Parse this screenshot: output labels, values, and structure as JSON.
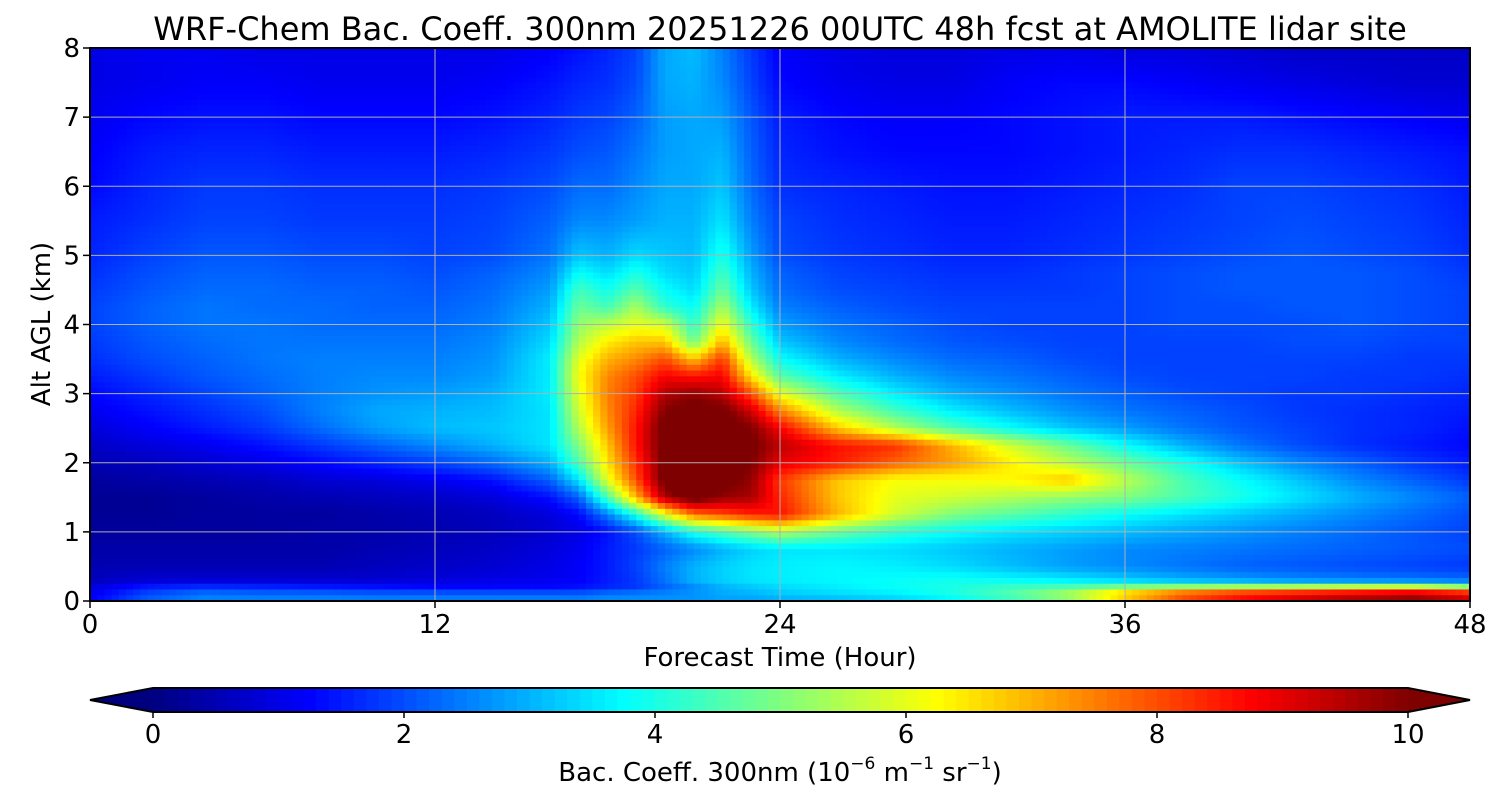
{
  "chart_data": {
    "type": "heatmap",
    "title": "WRF-Chem Bac. Coeff. 300nm  20251226 00UTC 48h fcst at AMOLITE lidar site",
    "xlabel": "Forecast Time (Hour)",
    "ylabel": "Alt AGL (km)",
    "xlim": [
      0,
      48
    ],
    "ylim": [
      0,
      8
    ],
    "x_ticks": [
      0,
      12,
      24,
      36,
      48
    ],
    "y_ticks": [
      0,
      1,
      2,
      3,
      4,
      5,
      6,
      7,
      8
    ],
    "grid": true,
    "colormap": "jet",
    "colorbar": {
      "label_prefix": "Bac. Coeff. 300nm  (10",
      "label_exp1": "−6",
      "label_mid": " m",
      "label_exp2": "−1",
      "label_mid2": " sr",
      "label_exp3": "−1",
      "label_suffix": ")",
      "range": [
        0,
        10
      ],
      "ticks": [
        0,
        2,
        4,
        6,
        8,
        10
      ],
      "extend": "both",
      "orientation": "horizontal",
      "under_color": "#00007f",
      "over_color": "#7f0000"
    },
    "x": [
      0,
      2,
      4,
      6,
      8,
      10,
      12,
      14,
      16,
      17,
      18,
      19,
      20,
      21,
      22,
      23,
      24,
      26,
      28,
      30,
      32,
      34,
      36,
      38,
      40,
      42,
      44,
      46,
      48
    ],
    "y": [
      0,
      0.1,
      0.2,
      0.3,
      0.5,
      0.75,
      1.0,
      1.25,
      1.5,
      1.75,
      2.0,
      2.25,
      2.5,
      2.75,
      3.0,
      3.25,
      3.5,
      3.75,
      4.0,
      4.25,
      4.5,
      4.75,
      5.0,
      5.5,
      6.0,
      6.5,
      7.0,
      7.5,
      8.0
    ],
    "values": [
      [
        1.2,
        2.2,
        2.6,
        2.6,
        2.6,
        2.6,
        2.6,
        2.6,
        2.6,
        2.6,
        2.7,
        2.7,
        2.7,
        2.7,
        2.8,
        2.8,
        2.9,
        3.0,
        3.2,
        3.6,
        4.2,
        5.0,
        6.5,
        7.8,
        8.5,
        9.0,
        9.4,
        9.7,
        9.0
      ],
      [
        1.1,
        2.0,
        2.4,
        2.3,
        2.3,
        2.2,
        2.2,
        2.2,
        2.2,
        2.2,
        2.4,
        2.5,
        2.6,
        2.7,
        2.9,
        3.0,
        3.2,
        3.4,
        3.6,
        4.0,
        4.6,
        5.5,
        7.0,
        8.2,
        8.8,
        9.2,
        9.5,
        9.8,
        9.2
      ],
      [
        0.9,
        1.5,
        1.7,
        1.6,
        1.5,
        1.4,
        1.3,
        1.3,
        1.3,
        1.4,
        1.6,
        1.8,
        2.2,
        2.6,
        3.0,
        3.2,
        3.4,
        3.6,
        3.8,
        4.0,
        4.3,
        4.5,
        5.0,
        5.3,
        5.5,
        5.6,
        5.8,
        5.9,
        5.3
      ],
      [
        0.6,
        0.8,
        0.8,
        0.8,
        0.8,
        0.8,
        0.9,
        1.0,
        1.1,
        1.2,
        1.5,
        1.8,
        2.4,
        3.0,
        3.3,
        3.5,
        3.6,
        3.7,
        3.8,
        3.9,
        3.8,
        3.6,
        3.3,
        3.0,
        2.8,
        2.6,
        2.5,
        2.4,
        2.3
      ],
      [
        0.5,
        0.5,
        0.5,
        0.5,
        0.5,
        0.6,
        0.7,
        0.8,
        1.0,
        1.2,
        1.5,
        1.9,
        2.5,
        3.0,
        3.3,
        3.5,
        3.6,
        3.7,
        3.6,
        3.4,
        3.1,
        2.8,
        2.6,
        2.4,
        2.2,
        2.1,
        2.0,
        1.9,
        1.8
      ],
      [
        0.4,
        0.4,
        0.4,
        0.4,
        0.4,
        0.5,
        0.6,
        0.7,
        0.9,
        1.1,
        1.5,
        1.8,
        2.2,
        2.6,
        3.0,
        3.3,
        3.5,
        3.5,
        3.4,
        3.2,
        3.0,
        2.8,
        2.6,
        2.5,
        2.4,
        2.3,
        2.2,
        2.1,
        2.0
      ],
      [
        0.3,
        0.3,
        0.3,
        0.3,
        0.4,
        0.4,
        0.5,
        0.6,
        0.8,
        1.0,
        1.4,
        2.0,
        3.0,
        4.0,
        4.5,
        5.0,
        5.5,
        4.8,
        4.2,
        3.8,
        3.5,
        3.3,
        3.1,
        2.9,
        2.7,
        2.5,
        2.3,
        2.1,
        1.9
      ],
      [
        0.2,
        0.2,
        0.3,
        0.3,
        0.3,
        0.4,
        0.5,
        0.6,
        0.9,
        1.3,
        2.5,
        4.0,
        6.0,
        7.6,
        8.0,
        8.4,
        8.6,
        7.0,
        5.8,
        5.0,
        4.6,
        4.2,
        3.8,
        3.5,
        3.2,
        2.9,
        2.6,
        2.3,
        2.0
      ],
      [
        0.2,
        0.2,
        0.3,
        0.4,
        0.5,
        0.6,
        0.7,
        0.9,
        1.4,
        2.2,
        4.5,
        7.0,
        9.6,
        10.5,
        9.8,
        9.6,
        8.4,
        6.8,
        6.0,
        5.8,
        5.5,
        5.2,
        5.0,
        4.5,
        4.0,
        3.5,
        3.0,
        2.6,
        2.2
      ],
      [
        0.3,
        0.4,
        0.5,
        0.6,
        0.8,
        0.9,
        1.1,
        1.4,
        2.2,
        3.5,
        6.0,
        8.0,
        10.3,
        10.5,
        10.3,
        9.8,
        8.2,
        6.8,
        6.2,
        6.2,
        6.3,
        6.8,
        5.6,
        4.5,
        3.8,
        3.2,
        2.6,
        2.2,
        1.8
      ],
      [
        0.5,
        0.6,
        0.8,
        1.0,
        1.3,
        1.6,
        1.9,
        2.3,
        3.0,
        4.5,
        6.5,
        8.3,
        10.2,
        10.4,
        10.3,
        10.0,
        9.0,
        8.5,
        7.8,
        7.2,
        6.4,
        5.6,
        4.8,
        4.0,
        3.2,
        2.6,
        2.2,
        1.8,
        1.5
      ],
      [
        0.7,
        0.9,
        1.1,
        1.4,
        1.8,
        2.2,
        2.6,
        3.0,
        3.5,
        5.0,
        6.8,
        8.6,
        10.3,
        10.5,
        10.4,
        10.2,
        9.4,
        8.6,
        8.3,
        7.0,
        5.8,
        4.8,
        3.8,
        3.0,
        2.4,
        2.0,
        1.7,
        1.5,
        1.3
      ],
      [
        0.9,
        1.2,
        1.5,
        1.8,
        2.3,
        2.8,
        3.1,
        3.2,
        3.5,
        5.5,
        7.2,
        8.6,
        10.3,
        10.5,
        10.4,
        10.0,
        8.8,
        6.8,
        5.5,
        4.5,
        3.8,
        3.2,
        2.8,
        2.4,
        2.1,
        1.9,
        1.7,
        1.6,
        1.4
      ],
      [
        1.1,
        1.4,
        1.7,
        2.0,
        2.5,
        2.9,
        3.0,
        3.1,
        3.5,
        5.8,
        7.4,
        8.4,
        10.0,
        10.3,
        10.2,
        9.2,
        7.5,
        5.5,
        4.4,
        3.6,
        3.1,
        2.7,
        2.4,
        2.2,
        2.0,
        1.8,
        1.7,
        1.6,
        1.5
      ],
      [
        1.3,
        1.6,
        1.9,
        2.2,
        2.5,
        2.7,
        2.8,
        3.0,
        3.6,
        6.0,
        7.5,
        8.2,
        9.5,
        9.8,
        9.4,
        8.0,
        6.0,
        4.5,
        3.6,
        3.0,
        2.7,
        2.4,
        2.2,
        2.0,
        1.9,
        1.8,
        1.8,
        1.7,
        1.6
      ],
      [
        1.5,
        1.8,
        2.1,
        2.3,
        2.5,
        2.6,
        2.6,
        2.8,
        3.6,
        6.2,
        7.4,
        8.0,
        8.8,
        8.6,
        8.8,
        6.5,
        4.6,
        3.6,
        3.0,
        2.6,
        2.4,
        2.2,
        2.0,
        1.9,
        1.9,
        1.9,
        1.8,
        1.8,
        1.7
      ],
      [
        1.7,
        2.0,
        2.2,
        2.4,
        2.5,
        2.5,
        2.5,
        2.7,
        3.6,
        6.0,
        7.0,
        7.4,
        8.0,
        6.8,
        8.2,
        5.5,
        3.8,
        3.0,
        2.6,
        2.3,
        2.2,
        2.0,
        1.9,
        1.9,
        1.9,
        1.9,
        1.9,
        1.8,
        1.8
      ],
      [
        1.8,
        2.1,
        2.3,
        2.4,
        2.4,
        2.4,
        2.4,
        2.6,
        3.4,
        5.5,
        6.4,
        6.8,
        6.8,
        4.8,
        7.0,
        4.8,
        3.2,
        2.6,
        2.3,
        2.1,
        2.0,
        1.9,
        1.9,
        1.9,
        1.9,
        2.0,
        2.0,
        1.9,
        1.9
      ],
      [
        1.9,
        2.2,
        2.4,
        2.4,
        2.3,
        2.3,
        2.3,
        2.5,
        3.2,
        5.2,
        5.6,
        6.0,
        5.8,
        4.2,
        6.2,
        4.2,
        2.8,
        2.4,
        2.2,
        2.0,
        1.9,
        1.9,
        1.9,
        2.0,
        2.0,
        2.0,
        2.1,
        2.0,
        1.9
      ],
      [
        1.9,
        2.2,
        2.4,
        2.3,
        2.3,
        2.2,
        2.2,
        2.4,
        3.0,
        4.8,
        4.4,
        5.4,
        4.2,
        3.8,
        5.4,
        3.6,
        2.5,
        2.2,
        2.0,
        1.9,
        1.9,
        1.9,
        1.9,
        2.0,
        2.0,
        2.1,
        2.1,
        2.0,
        1.9
      ],
      [
        1.8,
        2.1,
        2.3,
        2.3,
        2.2,
        2.2,
        2.1,
        2.3,
        2.8,
        4.4,
        3.9,
        4.6,
        3.8,
        3.4,
        4.8,
        3.2,
        2.3,
        2.0,
        1.9,
        1.8,
        1.8,
        1.8,
        1.9,
        2.0,
        2.1,
        2.1,
        2.1,
        2.0,
        1.9
      ],
      [
        1.7,
        2.0,
        2.2,
        2.2,
        2.1,
        2.1,
        2.0,
        2.2,
        2.6,
        3.8,
        3.4,
        4.0,
        3.4,
        3.2,
        4.4,
        3.0,
        2.2,
        1.9,
        1.8,
        1.7,
        1.7,
        1.8,
        1.9,
        2.0,
        2.1,
        2.1,
        2.1,
        2.0,
        1.8
      ],
      [
        1.6,
        1.9,
        2.1,
        2.1,
        2.0,
        2.0,
        1.9,
        2.0,
        2.4,
        3.2,
        3.0,
        3.4,
        3.2,
        3.1,
        4.0,
        2.8,
        2.0,
        1.8,
        1.7,
        1.6,
        1.6,
        1.7,
        1.8,
        1.9,
        2.0,
        2.1,
        2.0,
        1.9,
        1.7
      ],
      [
        1.5,
        1.7,
        1.9,
        1.9,
        1.8,
        1.8,
        1.8,
        1.9,
        2.2,
        2.6,
        2.6,
        2.8,
        3.0,
        3.0,
        3.5,
        2.5,
        1.9,
        1.7,
        1.6,
        1.5,
        1.5,
        1.6,
        1.7,
        1.8,
        1.9,
        2.0,
        1.9,
        1.8,
        1.6
      ],
      [
        1.3,
        1.6,
        1.8,
        1.8,
        1.7,
        1.7,
        1.7,
        1.8,
        2.0,
        2.3,
        2.3,
        2.6,
        2.9,
        2.9,
        3.2,
        2.3,
        1.7,
        1.6,
        1.5,
        1.4,
        1.4,
        1.5,
        1.6,
        1.7,
        1.9,
        1.9,
        1.8,
        1.7,
        1.5
      ],
      [
        1.2,
        1.5,
        1.6,
        1.6,
        1.5,
        1.5,
        1.5,
        1.6,
        1.8,
        2.0,
        2.1,
        2.4,
        2.8,
        2.9,
        3.0,
        2.2,
        1.6,
        1.4,
        1.3,
        1.3,
        1.3,
        1.4,
        1.5,
        1.6,
        1.7,
        1.7,
        1.6,
        1.5,
        1.4
      ],
      [
        1.1,
        1.3,
        1.4,
        1.4,
        1.3,
        1.3,
        1.3,
        1.4,
        1.6,
        1.8,
        1.9,
        2.2,
        2.8,
        2.9,
        2.8,
        2.1,
        1.5,
        1.3,
        1.2,
        1.2,
        1.3,
        1.4,
        1.5,
        1.5,
        1.5,
        1.4,
        1.3,
        1.2,
        1.1
      ],
      [
        1.0,
        1.1,
        1.2,
        1.2,
        1.1,
        1.1,
        1.1,
        1.2,
        1.4,
        1.6,
        1.7,
        2.0,
        2.9,
        3.0,
        2.6,
        1.9,
        1.3,
        1.1,
        1.0,
        1.0,
        1.2,
        1.3,
        1.3,
        1.2,
        1.1,
        1.0,
        0.9,
        0.8,
        0.8
      ],
      [
        1.0,
        1.1,
        1.1,
        1.0,
        1.0,
        1.0,
        1.0,
        1.0,
        1.2,
        1.4,
        1.6,
        1.9,
        2.9,
        3.1,
        2.5,
        1.8,
        1.2,
        1.0,
        0.9,
        0.9,
        1.0,
        1.0,
        0.9,
        0.9,
        0.8,
        0.7,
        0.7,
        0.7,
        0.7
      ]
    ]
  }
}
